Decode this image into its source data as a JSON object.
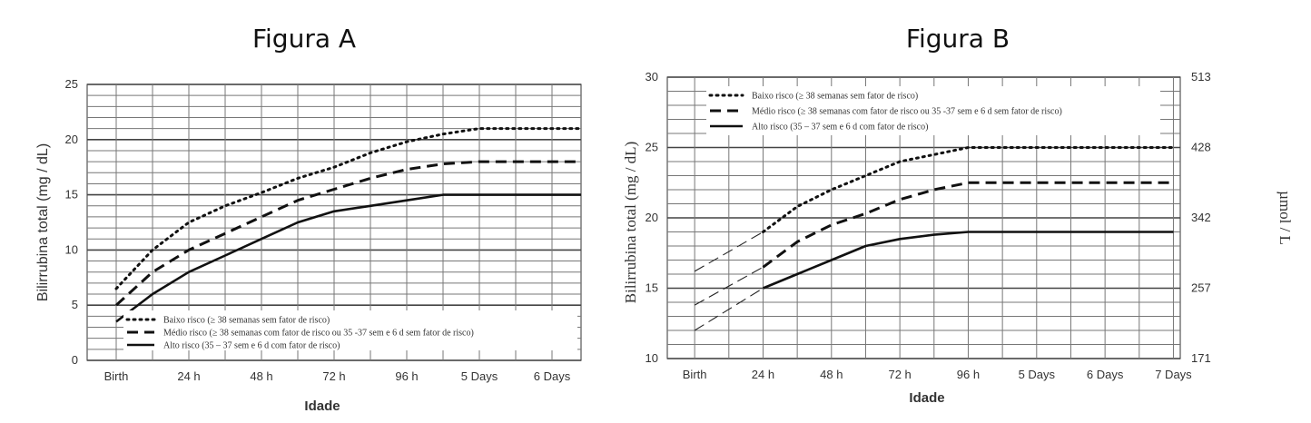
{
  "chart_data": [
    {
      "type": "line",
      "title": "Figura A",
      "xlabel": "Idade",
      "ylabel": "Bilirrubina total (mg / dL)",
      "categories": [
        "Birth",
        "24 h",
        "48 h",
        "72 h",
        "96 h",
        "5 Days",
        "6 Days"
      ],
      "xlim": [
        -0.4,
        6.4
      ],
      "ylim": [
        0,
        25
      ],
      "yticks": [
        0,
        5,
        10,
        15,
        20,
        25
      ],
      "grid": true,
      "legend_position": "bottom-right",
      "series": [
        {
          "name": "Baixo risco (≥ 38 semanas sem fator de risco)",
          "style": "dotted",
          "x": [
            0,
            0.5,
            1,
            1.5,
            2,
            2.5,
            3,
            3.5,
            4,
            4.5,
            5,
            6.4
          ],
          "y": [
            6.5,
            10,
            12.5,
            14,
            15.2,
            16.5,
            17.5,
            18.8,
            19.8,
            20.5,
            21,
            21
          ]
        },
        {
          "name": "Médio risco (≥ 38 semanas com fator de risco ou 35 -37 sem e 6 d sem fator de risco)",
          "style": "dashed",
          "x": [
            0,
            0.5,
            1,
            1.5,
            2,
            2.5,
            3,
            3.5,
            4,
            4.5,
            5,
            6.4
          ],
          "y": [
            5,
            8,
            10,
            11.5,
            13,
            14.5,
            15.5,
            16.5,
            17.3,
            17.8,
            18,
            18
          ]
        },
        {
          "name": "Alto risco (35 – 37 sem e 6 d com fator de risco)",
          "style": "solid",
          "x": [
            0,
            0.5,
            1,
            1.5,
            2,
            2.5,
            3,
            3.5,
            4,
            4.5,
            5,
            6.4
          ],
          "y": [
            3.5,
            6,
            8,
            9.5,
            11,
            12.5,
            13.5,
            14,
            14.5,
            15,
            15,
            15
          ]
        }
      ]
    },
    {
      "type": "line",
      "title": "Figura B",
      "xlabel": "Idade",
      "ylabel": "Bilirrubina total (mg / dL)",
      "ylabel_right": "µmol / L",
      "categories": [
        "Birth",
        "24 h",
        "48 h",
        "72 h",
        "96 h",
        "5 Days",
        "6 Days",
        "7 Days"
      ],
      "xlim": [
        -0.4,
        7.1
      ],
      "ylim": [
        10,
        30
      ],
      "yticks": [
        10,
        15,
        20,
        25,
        30
      ],
      "yticks_right": [
        {
          "value": 10,
          "label": "171"
        },
        {
          "value": 15,
          "label": "257"
        },
        {
          "value": 20,
          "label": "342"
        },
        {
          "value": 25,
          "label": "428"
        },
        {
          "value": 30,
          "label": "513"
        }
      ],
      "grid": true,
      "legend_position": "top-left",
      "series": [
        {
          "name": "Baixo risco (≥ 38 semanas sem fator de risco)",
          "style": "dotted",
          "x": [
            1,
            1.5,
            2,
            2.5,
            3,
            3.5,
            4,
            5,
            6,
            7
          ],
          "y": [
            19,
            20.8,
            22,
            23,
            24,
            24.5,
            25,
            25,
            25,
            25
          ]
        },
        {
          "name": "Médio risco (≥ 38 semanas com fator de risco ou 35 -37 sem e 6 d sem fator de risco)",
          "style": "dashed",
          "x": [
            1,
            1.5,
            2,
            2.5,
            3,
            3.5,
            4,
            5,
            6,
            7
          ],
          "y": [
            16.5,
            18.3,
            19.5,
            20.3,
            21.3,
            22,
            22.5,
            22.5,
            22.5,
            22.5
          ]
        },
        {
          "name": "Alto risco (35 – 37 sem e 6 d com fator de risco)",
          "style": "solid",
          "x": [
            1,
            1.5,
            2,
            2.5,
            3,
            3.5,
            4,
            5,
            6,
            7
          ],
          "y": [
            15,
            16,
            17,
            18,
            18.5,
            18.8,
            19,
            19,
            19,
            19
          ]
        }
      ],
      "extrapolations": [
        {
          "x": [
            0,
            1
          ],
          "y": [
            16.2,
            19
          ]
        },
        {
          "x": [
            0,
            1
          ],
          "y": [
            13.8,
            16.5
          ]
        },
        {
          "x": [
            0,
            1
          ],
          "y": [
            12,
            15
          ]
        }
      ]
    }
  ]
}
